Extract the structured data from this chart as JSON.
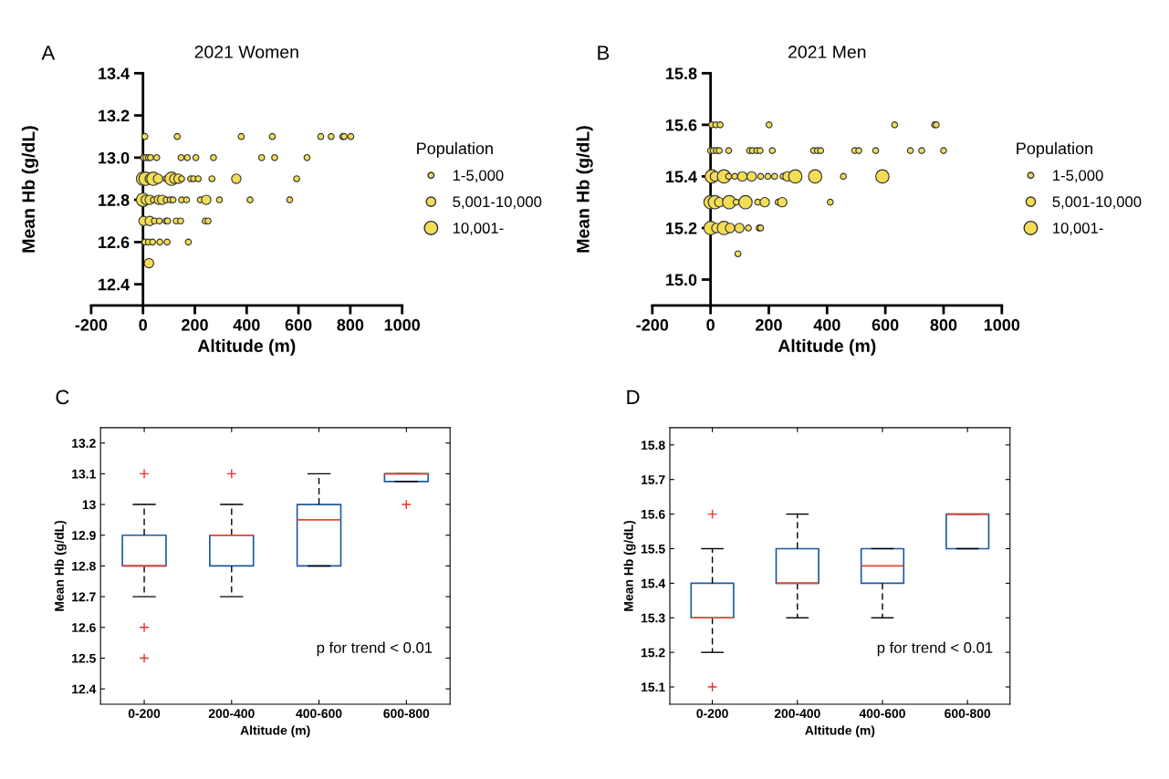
{
  "chart_data": [
    {
      "type": "bubble",
      "title": "2021 Women",
      "xlabel": "Altitude (m)",
      "ylabel": "Mean Hb (g/dL)",
      "annotations": [
        "A"
      ],
      "legend_title": "Population",
      "xlim": [
        -200,
        1000
      ],
      "xticks": [
        -200,
        0,
        200,
        400,
        600,
        800,
        1000
      ],
      "ylim": [
        12.3,
        13.4
      ],
      "yticks": [
        12.4,
        12.6,
        12.8,
        {
          "value": 13.0,
          "label": "13.0"
        },
        13.2,
        13.4
      ],
      "size_legend": [
        {
          "value": 0.2,
          "label": "1-5,000"
        },
        {
          "value": 0.5,
          "label": "5,001-10,000"
        },
        {
          "value": 1,
          "label": "10,001-"
        }
      ],
      "series": [
        {
          "color": "#f2dd55",
          "x": [
            7,
            132,
            379,
            499,
            686,
            726,
            771,
            776,
            802,
            2,
            11,
            21,
            29,
            53,
            147,
            171,
            204,
            272,
            458,
            508,
            633,
            0,
            10,
            26,
            40,
            58,
            89,
            110,
            121,
            137,
            149,
            184,
            195,
            213,
            266,
            360,
            593,
            0,
            11,
            26,
            40,
            61,
            74,
            89,
            105,
            116,
            149,
            168,
            221,
            244,
            295,
            413,
            566,
            2,
            26,
            44,
            63,
            89,
            95,
            128,
            145,
            240,
            251,
            7,
            21,
            37,
            65,
            93,
            175,
            23
          ],
          "values": [
            13.1,
            13.1,
            13.1,
            13.1,
            13.1,
            13.1,
            13.1,
            13.1,
            13.1,
            13.0,
            13.0,
            13.0,
            13.0,
            13.0,
            13.0,
            13.0,
            13.0,
            13.0,
            13.0,
            13.0,
            13.0,
            12.9,
            12.9,
            12.9,
            12.9,
            12.9,
            12.9,
            12.9,
            12.9,
            12.9,
            12.9,
            12.9,
            12.9,
            12.9,
            12.9,
            12.9,
            12.9,
            12.8,
            12.8,
            12.8,
            12.8,
            12.8,
            12.8,
            12.8,
            12.8,
            12.8,
            12.8,
            12.8,
            12.8,
            12.8,
            12.8,
            12.8,
            12.8,
            12.7,
            12.7,
            12.7,
            12.7,
            12.7,
            12.7,
            12.7,
            12.7,
            12.7,
            12.7,
            12.6,
            12.6,
            12.6,
            12.6,
            12.6,
            12.6,
            12.5
          ],
          "sizes": [
            0.2,
            0.2,
            0.2,
            0.2,
            0.2,
            0.2,
            0.2,
            0.2,
            0.2,
            0.2,
            0.2,
            0.2,
            0.2,
            0.2,
            0.2,
            0.2,
            0.2,
            0.2,
            0.2,
            0.2,
            0.2,
            1,
            1,
            0.5,
            1,
            0.5,
            0.2,
            1,
            0.5,
            0.5,
            0.2,
            0.2,
            0.2,
            0.2,
            0.2,
            0.5,
            0.2,
            1,
            0.5,
            0.5,
            0.2,
            0.5,
            0.5,
            0.2,
            0.2,
            0.2,
            0.2,
            0.2,
            0.2,
            0.5,
            0.2,
            0.2,
            0.2,
            0.5,
            0.5,
            0.2,
            0.2,
            0.2,
            0.2,
            0.2,
            0.2,
            0.2,
            0.2,
            0.2,
            0.2,
            0.2,
            0.2,
            0.2,
            0.2,
            0.5
          ]
        }
      ]
    },
    {
      "type": "bubble",
      "title": "2021 Men",
      "xlabel": "Altitude (m)",
      "ylabel": "Mean Hb (g/dL)",
      "annotations": [
        "B"
      ],
      "legend_title": "Population",
      "xlim": [
        -200,
        1000
      ],
      "xticks": [
        -200,
        0,
        200,
        400,
        600,
        800,
        1000
      ],
      "ylim": [
        14.9,
        15.8
      ],
      "yticks": [
        {
          "value": 15.0,
          "label": "15.0"
        },
        15.2,
        15.4,
        15.6,
        15.8
      ],
      "size_legend": [
        {
          "value": 0.2,
          "label": "1-5,000"
        },
        {
          "value": 0.5,
          "label": "5,001-10,000"
        },
        {
          "value": 1,
          "label": "10,001-"
        }
      ],
      "series": [
        {
          "color": "#f2dd55",
          "x": [
            4,
            18,
            33,
            201,
            632,
            769,
            775,
            0,
            9,
            20,
            30,
            62,
            134,
            144,
            159,
            170,
            212,
            354,
            367,
            378,
            495,
            509,
            567,
            686,
            725,
            800,
            4,
            15,
            46,
            62,
            83,
            109,
            141,
            172,
            197,
            220,
            249,
            264,
            291,
            359,
            456,
            590,
            0,
            15,
            30,
            64,
            88,
            120,
            162,
            186,
            232,
            246,
            411,
            0,
            20,
            46,
            67,
            99,
            130,
            167,
            172,
            94
          ],
          "values": [
            15.6,
            15.6,
            15.6,
            15.6,
            15.6,
            15.6,
            15.6,
            15.5,
            15.5,
            15.5,
            15.5,
            15.5,
            15.5,
            15.5,
            15.5,
            15.5,
            15.5,
            15.5,
            15.5,
            15.5,
            15.5,
            15.5,
            15.5,
            15.5,
            15.5,
            15.5,
            15.4,
            15.4,
            15.4,
            15.4,
            15.4,
            15.4,
            15.4,
            15.4,
            15.4,
            15.4,
            15.4,
            15.4,
            15.4,
            15.4,
            15.4,
            15.4,
            15.3,
            15.3,
            15.3,
            15.3,
            15.3,
            15.3,
            15.3,
            15.3,
            15.3,
            15.3,
            15.3,
            15.2,
            15.2,
            15.2,
            15.2,
            15.2,
            15.2,
            15.2,
            15.2,
            15.1
          ],
          "sizes": [
            0.2,
            0.2,
            0.2,
            0.2,
            0.2,
            0.2,
            0.2,
            0.2,
            0.2,
            0.2,
            0.2,
            0.2,
            0.2,
            0.2,
            0.2,
            0.2,
            0.2,
            0.2,
            0.2,
            0.2,
            0.2,
            0.2,
            0.2,
            0.2,
            0.2,
            0.2,
            1,
            0.5,
            1,
            0.2,
            0.2,
            0.5,
            0.5,
            0.2,
            0.2,
            0.2,
            0.2,
            0.5,
            1,
            1,
            0.2,
            1,
            1,
            1,
            0.5,
            1,
            0.2,
            1,
            0.2,
            0.5,
            0.2,
            0.5,
            0.2,
            1,
            0.5,
            1,
            0.5,
            0.5,
            0.2,
            0.2,
            0.2,
            0.2
          ]
        }
      ]
    },
    {
      "type": "box",
      "xlabel": "Altitude (m)",
      "ylabel": "Mean Hb (g/dL)",
      "annotations": [
        "C",
        "p for trend < 0.01"
      ],
      "categories": [
        "0-200",
        "200-400",
        "400-600",
        "600-800"
      ],
      "ylim": [
        12.35,
        13.25
      ],
      "yticks": [
        12.4,
        12.5,
        12.6,
        12.7,
        12.8,
        12.9,
        13,
        13.1,
        13.2
      ],
      "boxes": [
        {
          "low": 12.7,
          "q1": 12.8,
          "median": 12.8,
          "q3": 12.9,
          "high": 13.0,
          "outliers": [
            13.1,
            12.6,
            12.5
          ]
        },
        {
          "low": 12.7,
          "q1": 12.8,
          "median": 12.9,
          "q3": 12.9,
          "high": 13.0,
          "outliers": [
            13.1
          ]
        },
        {
          "low": 12.8,
          "q1": 12.8,
          "median": 12.95,
          "q3": 13.0,
          "high": 13.1
        },
        {
          "low": 13.075,
          "q1": 13.075,
          "median": 13.1,
          "q3": 13.1,
          "high": 13.1,
          "outliers": [
            13.0
          ]
        }
      ]
    },
    {
      "type": "box",
      "xlabel": "Altitude (m)",
      "ylabel": "Mean Hb (g/dL)",
      "annotations": [
        "D",
        "p for trend < 0.01"
      ],
      "categories": [
        "0-200",
        "200-400",
        "400-600",
        "600-800"
      ],
      "ylim": [
        15.05,
        15.85
      ],
      "yticks": [
        15.1,
        15.2,
        15.3,
        15.4,
        15.5,
        15.6,
        15.7,
        15.8
      ],
      "boxes": [
        {
          "low": 15.2,
          "q1": 15.3,
          "median": 15.3,
          "q3": 15.4,
          "high": 15.5,
          "outliers": [
            15.6,
            15.1
          ]
        },
        {
          "low": 15.3,
          "q1": 15.4,
          "median": 15.4,
          "q3": 15.5,
          "high": 15.6
        },
        {
          "low": 15.3,
          "q1": 15.4,
          "median": 15.45,
          "q3": 15.5,
          "high": 15.5
        },
        {
          "low": 15.5,
          "q1": 15.5,
          "median": 15.6,
          "q3": 15.6,
          "high": 15.6
        }
      ]
    }
  ]
}
